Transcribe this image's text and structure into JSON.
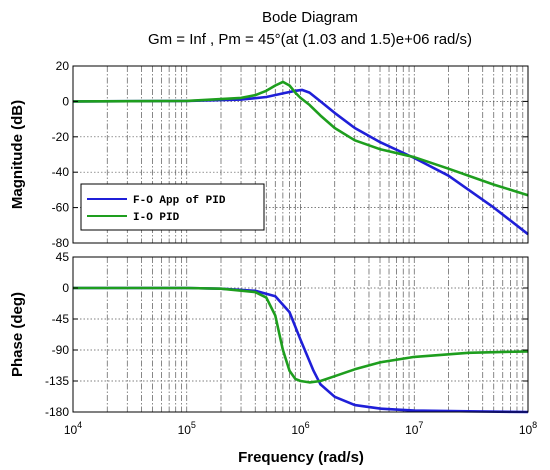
{
  "chart_data": {
    "type": "line",
    "title": "Bode Diagram",
    "subtitle": "Gm = Inf ,  Pm = 45°(at (1.03 and 1.5)e+06 rad/s)",
    "xlabel": "Frequency  (rad/s)",
    "xscale": "log",
    "xlim": [
      10000,
      100000000
    ],
    "x_ticks": [
      {
        "value": 10000,
        "base": "10",
        "exp": "4"
      },
      {
        "value": 100000,
        "base": "10",
        "exp": "5"
      },
      {
        "value": 1000000,
        "base": "10",
        "exp": "6"
      },
      {
        "value": 10000000,
        "base": "10",
        "exp": "7"
      },
      {
        "value": 100000000,
        "base": "10",
        "exp": "8"
      }
    ],
    "grid": true,
    "legend_position": "left",
    "legend": [
      {
        "label": "F-O App of PID",
        "color": "#1f1fd8"
      },
      {
        "label": "I-O PID",
        "color": "#1e9e1e"
      }
    ],
    "panels": [
      {
        "ylabel": "Magnitude (dB)",
        "ylim": [
          -80,
          20
        ],
        "yticks": [
          "20",
          "0",
          "-20",
          "-40",
          "-60",
          "-80"
        ],
        "ytick_values": [
          20,
          0,
          -20,
          -40,
          -60,
          -80
        ],
        "series": [
          {
            "color": "#1f1fd8",
            "x": [
              10000,
              100000,
              300000,
              500000,
              700000,
              900000,
              1030000,
              1200000,
              1500000,
              2000000,
              3000000,
              5000000,
              10000000,
              20000000,
              50000000,
              100000000
            ],
            "y": [
              0,
              0.3,
              1.0,
              2.5,
              4.5,
              6.0,
              6.5,
              5.0,
              0,
              -6.5,
              -15,
              -23,
              -32,
              -42,
              -60,
              -75
            ]
          },
          {
            "color": "#1e9e1e",
            "x": [
              10000,
              100000,
              300000,
              400000,
              500000,
              600000,
              700000,
              800000,
              900000,
              1000000,
              1200000,
              1500000,
              2000000,
              3000000,
              5000000,
              10000000,
              20000000,
              50000000,
              100000000
            ],
            "y": [
              0,
              0.3,
              2.0,
              3.5,
              6.0,
              9.0,
              11.0,
              9.0,
              5.0,
              2.0,
              -2.0,
              -8.0,
              -15,
              -22,
              -27,
              -31.5,
              -38,
              -47,
              -53
            ]
          }
        ]
      },
      {
        "ylabel": "Phase (deg)",
        "ylim": [
          -180,
          45
        ],
        "yticks": [
          "45",
          "0",
          "-45",
          "-90",
          "-135",
          "-180"
        ],
        "ytick_values": [
          45,
          0,
          -45,
          -90,
          -135,
          -180
        ],
        "series": [
          {
            "color": "#1f1fd8",
            "x": [
              10000,
              100000,
              200000,
              400000,
              600000,
              800000,
              1000000,
              1300000,
              1500000,
              2000000,
              3000000,
              5000000,
              10000000,
              30000000,
              100000000
            ],
            "y": [
              0,
              0,
              -1,
              -4,
              -12,
              -35,
              -75,
              -120,
              -140,
              -158,
              -170,
              -175,
              -178,
              -179,
              -180
            ]
          },
          {
            "color": "#1e9e1e",
            "x": [
              10000,
              100000,
              200000,
              400000,
              500000,
              600000,
              700000,
              800000,
              900000,
              1000000,
              1200000,
              1500000,
              2000000,
              3000000,
              5000000,
              10000000,
              30000000,
              100000000
            ],
            "y": [
              0,
              0,
              -1,
              -6,
              -14,
              -40,
              -90,
              -120,
              -132,
              -135,
              -137,
              -135,
              -128,
              -118,
              -108,
              -100,
              -94,
              -92
            ]
          }
        ]
      }
    ]
  }
}
